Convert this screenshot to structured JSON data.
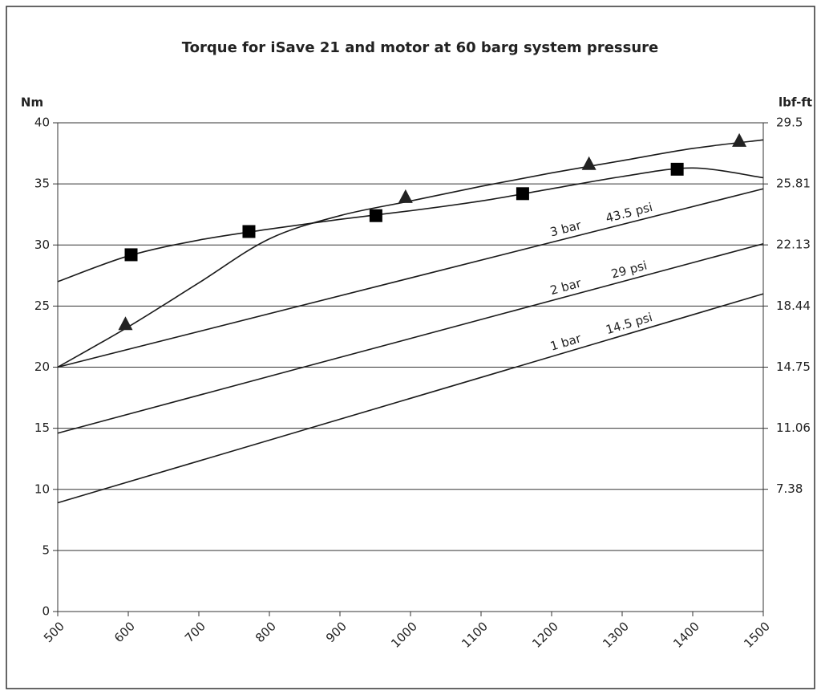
{
  "chart_data": {
    "type": "line",
    "title": "Torque for iSave 21 and motor at 60 barg system pressure",
    "y_label": "Nm",
    "y2_label": "lbf-ft",
    "xlim": [
      500,
      1500
    ],
    "xticks": [
      500,
      600,
      700,
      800,
      900,
      1000,
      1100,
      1200,
      1300,
      1400,
      1500
    ],
    "ylim": [
      0,
      40
    ],
    "yticks": [
      0,
      5,
      10,
      15,
      20,
      25,
      30,
      35,
      40
    ],
    "y2lim": [
      0,
      29.5
    ],
    "y2ticks": [
      7.38,
      11.06,
      14.75,
      18.44,
      22.13,
      25.81,
      29.5
    ],
    "grid": true,
    "series": [
      {
        "color": "#1a1a1a",
        "marker": "none",
        "x": [
          500,
          600,
          700,
          800,
          900,
          1000,
          1100,
          1200,
          1300,
          1400,
          1500
        ],
        "values": [
          27,
          29.1,
          30.4,
          31.3,
          32.1,
          32.8,
          33.6,
          34.6,
          35.6,
          36.3,
          35.5
        ]
      },
      {
        "color": "#000000",
        "marker": "square",
        "x": [
          604,
          771,
          951,
          1159,
          1378
        ],
        "values": [
          29.2,
          31.1,
          32.4,
          34.2,
          36.2
        ]
      },
      {
        "color": "#1a1a1a",
        "marker": "none",
        "x": [
          500,
          600,
          700,
          800,
          900,
          1000,
          1100,
          1200,
          1300,
          1400,
          1500
        ],
        "values": [
          20,
          23.3,
          26.9,
          30.5,
          32.4,
          33.6,
          34.8,
          35.9,
          36.9,
          37.9,
          38.6
        ]
      },
      {
        "color": "#222222",
        "marker": "triangle",
        "x": [
          596,
          993,
          1253,
          1466
        ],
        "values": [
          23.5,
          33.9,
          36.6,
          38.5
        ]
      },
      {
        "color": "#1a1a1a",
        "marker": "none",
        "x": [
          500,
          1500
        ],
        "values": [
          20,
          34.6
        ],
        "labels": [
          "3 bar",
          "43.5 psi"
        ]
      },
      {
        "color": "#1a1a1a",
        "marker": "none",
        "x": [
          500,
          1500
        ],
        "values": [
          14.6,
          30.1
        ],
        "labels": [
          "2 bar",
          "29 psi"
        ]
      },
      {
        "color": "#1a1a1a",
        "marker": "none",
        "x": [
          500,
          1500
        ],
        "values": [
          8.9,
          26
        ],
        "labels": [
          "1 bar",
          "14.5 psi"
        ]
      }
    ]
  }
}
